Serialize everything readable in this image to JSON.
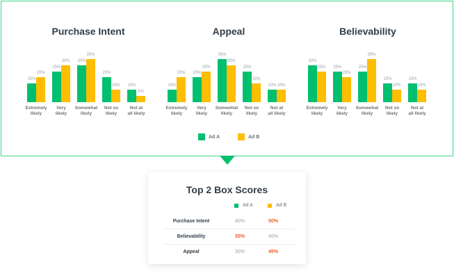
{
  "colors": {
    "ad_a": "#00bf6f",
    "ad_b": "#fdbd00",
    "highlight": "#f05b24",
    "frame": "#3fd68a"
  },
  "chart_data": [
    {
      "type": "bar",
      "title": "Purchase Intent",
      "categories": [
        "Extremely likely",
        "Very likely",
        "Somewhat likely",
        "Not so likely",
        "Not at all likely"
      ],
      "series": [
        {
          "name": "Ad A",
          "values": [
            15,
            25,
            30,
            20,
            10
          ]
        },
        {
          "name": "Ad B",
          "values": [
            20,
            30,
            35,
            10,
            5
          ]
        }
      ],
      "unit": "%",
      "ylim": [
        0,
        35
      ],
      "grid": false,
      "legend": "bottom"
    },
    {
      "type": "bar",
      "title": "Appeal",
      "categories": [
        "Extremely likely",
        "Very likely",
        "Somewhat likely",
        "Not so likely",
        "Not at all likely"
      ],
      "series": [
        {
          "name": "Ad A",
          "values": [
            10,
            20,
            35,
            25,
            10
          ]
        },
        {
          "name": "Ad B",
          "values": [
            20,
            25,
            30,
            15,
            10
          ]
        }
      ],
      "unit": "%",
      "ylim": [
        0,
        35
      ],
      "grid": false,
      "legend": "bottom"
    },
    {
      "type": "bar",
      "title": "Believability",
      "categories": [
        "Extremely likely",
        "Very likely",
        "Somewhat likely",
        "Not so likely",
        "Not at all likely"
      ],
      "series": [
        {
          "name": "Ad A",
          "values": [
            30,
            25,
            25,
            15,
            15
          ]
        },
        {
          "name": "Ad B",
          "values": [
            25,
            20,
            35,
            10,
            10
          ]
        }
      ],
      "unit": "%",
      "ylim": [
        0,
        35
      ],
      "grid": false,
      "legend": "bottom"
    }
  ],
  "legend": {
    "a": "Ad A",
    "b": "Ad B"
  },
  "table": {
    "title": "Top 2 Box Scores",
    "col_a": "Ad A",
    "col_b": "Ad B",
    "rows": [
      {
        "label": "Purchase Intent",
        "a": "40%",
        "b": "50%",
        "winner": "b"
      },
      {
        "label": "Believability",
        "a": "55%",
        "b": "45%",
        "winner": "a"
      },
      {
        "label": "Appeal",
        "a": "30%",
        "b": "45%",
        "winner": "b"
      }
    ]
  }
}
